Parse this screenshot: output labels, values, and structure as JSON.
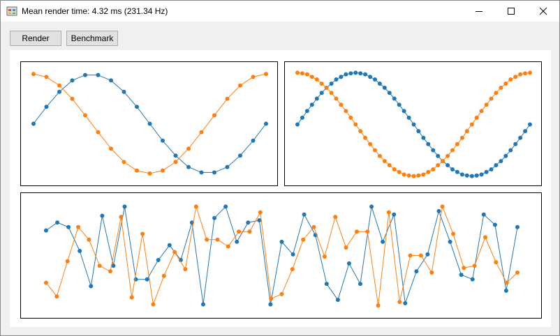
{
  "window": {
    "title": "Mean render time: 4.32 ms (231.34 Hz)",
    "icon": "app-icon",
    "controls": [
      "minimize-icon",
      "maximize-icon",
      "close-icon"
    ]
  },
  "toolbar": {
    "render_label": "Render",
    "benchmark_label": "Benchmark"
  },
  "colors": {
    "series_blue": "#1f77b4",
    "series_orange": "#ff7f0e",
    "plot_border": "#000000",
    "background": "#f0f0f0"
  },
  "chart_data": [
    {
      "type": "line",
      "grid": false,
      "ylim": [
        -1.1,
        1.1
      ],
      "series": [
        {
          "color": "#1f77b4",
          "values": [
            0.0,
            0.34,
            0.64,
            0.87,
            0.98,
            0.98,
            0.87,
            0.64,
            0.34,
            0.0,
            -0.34,
            -0.64,
            -0.87,
            -0.98,
            -0.98,
            -0.87,
            -0.64,
            -0.34,
            0.0
          ]
        },
        {
          "color": "#ff7f0e",
          "values": [
            1.0,
            0.94,
            0.77,
            0.5,
            0.17,
            -0.17,
            -0.5,
            -0.77,
            -0.94,
            -1.0,
            -0.94,
            -0.77,
            -0.5,
            -0.17,
            0.17,
            0.5,
            0.77,
            0.94,
            1.0
          ]
        }
      ]
    },
    {
      "type": "line",
      "grid": false,
      "ylim": [
        -1.1,
        1.1
      ],
      "series": [
        {
          "color": "#1f77b4",
          "values": [
            0.0,
            0.13,
            0.26,
            0.38,
            0.5,
            0.61,
            0.71,
            0.79,
            0.87,
            0.92,
            0.97,
            0.99,
            1.0,
            0.99,
            0.97,
            0.92,
            0.87,
            0.79,
            0.71,
            0.61,
            0.5,
            0.38,
            0.26,
            0.13,
            0.0,
            -0.13,
            -0.26,
            -0.38,
            -0.5,
            -0.61,
            -0.71,
            -0.79,
            -0.87,
            -0.92,
            -0.97,
            -0.99,
            -1.0,
            -0.99,
            -0.97,
            -0.92,
            -0.87,
            -0.79,
            -0.71,
            -0.61,
            -0.5,
            -0.38,
            -0.26,
            -0.13,
            0.0
          ]
        },
        {
          "color": "#ff7f0e",
          "values": [
            1.0,
            0.99,
            0.97,
            0.92,
            0.87,
            0.79,
            0.71,
            0.61,
            0.5,
            0.38,
            0.26,
            0.13,
            0.0,
            -0.13,
            -0.26,
            -0.38,
            -0.5,
            -0.61,
            -0.71,
            -0.79,
            -0.87,
            -0.92,
            -0.97,
            -0.99,
            -1.0,
            -0.99,
            -0.97,
            -0.92,
            -0.87,
            -0.79,
            -0.71,
            -0.61,
            -0.5,
            -0.38,
            -0.26,
            -0.13,
            0.0,
            0.13,
            0.26,
            0.38,
            0.5,
            0.61,
            0.71,
            0.79,
            0.87,
            0.92,
            0.97,
            0.99,
            1.0
          ]
        }
      ]
    },
    {
      "type": "line",
      "grid": false,
      "ylim": [
        0,
        1
      ],
      "series": [
        {
          "color": "#1f77b4",
          "values": [
            0.72,
            0.79,
            0.75,
            0.54,
            0.23,
            0.85,
            0.41,
            0.93,
            0.29,
            0.29,
            0.46,
            0.59,
            0.46,
            0.79,
            0.07,
            0.83,
            0.93,
            0.62,
            0.79,
            0.81,
            0.07,
            0.62,
            0.51,
            0.86,
            0.68,
            0.25,
            0.11,
            0.43,
            0.25,
            0.93,
            0.62,
            0.86,
            0.08,
            0.36,
            0.51,
            0.89,
            0.62,
            0.33,
            0.29,
            0.86,
            0.77,
            0.19,
            0.75
          ]
        },
        {
          "color": "#ff7f0e",
          "values": [
            0.26,
            0.14,
            0.45,
            0.75,
            0.64,
            0.41,
            0.36,
            0.84,
            0.13,
            0.69,
            0.07,
            0.32,
            0.53,
            0.38,
            0.93,
            0.64,
            0.64,
            0.58,
            0.71,
            0.71,
            0.88,
            0.12,
            0.16,
            0.38,
            0.64,
            0.75,
            0.49,
            0.84,
            0.57,
            0.71,
            0.71,
            0.06,
            0.88,
            0.09,
            0.5,
            0.5,
            0.35,
            0.93,
            0.69,
            0.39,
            0.41,
            0.66,
            0.44,
            0.26,
            0.35
          ]
        }
      ]
    }
  ]
}
